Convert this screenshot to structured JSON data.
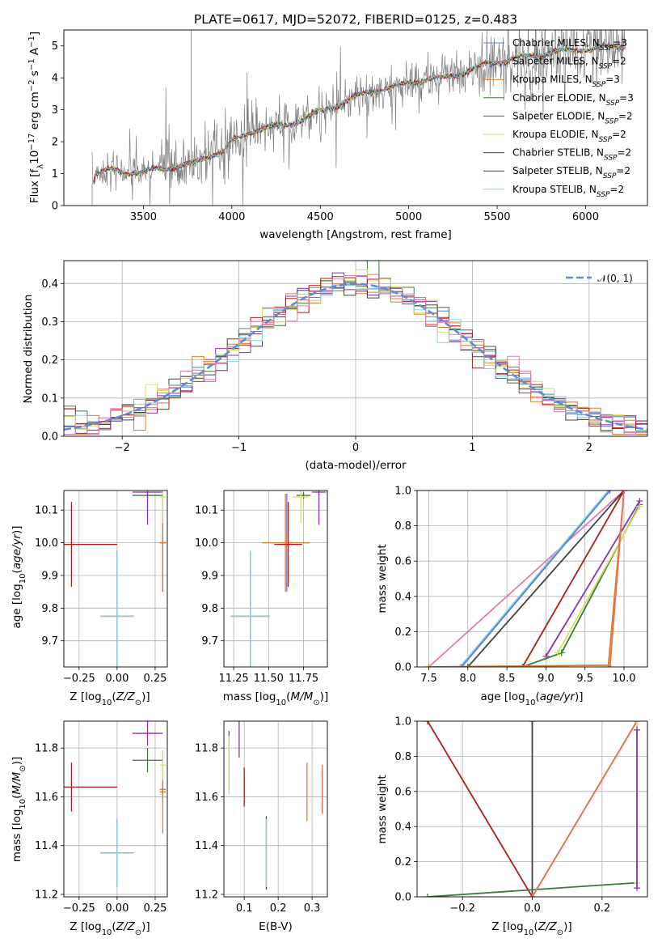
{
  "colors": {
    "Chabrier MILES": "#5b7fd6",
    "Salpeter MILES": "#e5735a",
    "Kroupa MILES": "#e07b20",
    "Chabrier ELODIE": "#3a7a3a",
    "Salpeter ELODIE": "#8b2fae",
    "Kroupa ELODIE": "#d3e25a",
    "Chabrier STELIB": "#444444",
    "Salpeter STELIB": "#b01b1b",
    "Kroupa STELIB": "#7fd6e2",
    "pink": "#e07bb0",
    "gauss": "#5b8ed6",
    "spectrum": "#808080"
  },
  "chart_data": [
    {
      "id": "spectrum",
      "type": "line",
      "title": "PLATE=0617, MJD=52072, FIBERID=0125, z=0.483",
      "xlabel": "wavelength [Angstrom, rest frame]",
      "ylabel": "Flux [f_λ 10^-17 erg cm^-2 s^-1 A^-1]",
      "xlim": [
        3050,
        6350
      ],
      "ylim": [
        0,
        5.5
      ],
      "xticks": [
        "3500",
        "4000",
        "4500",
        "5000",
        "5500",
        "6000"
      ],
      "yticks": [
        "0",
        "1",
        "2",
        "3",
        "4",
        "5"
      ],
      "grid": false,
      "legend": "top-right",
      "legend_entries": [
        {
          "model": "Chabrier MILES",
          "text": "Chabrier MILES, N",
          "sub": "SSP",
          "tail": "=3"
        },
        {
          "model": "Salpeter MILES",
          "text": "Salpeter MILES, N",
          "sub": "SSP",
          "tail": "=2"
        },
        {
          "model": "Kroupa MILES",
          "text": "Kroupa MILES, N",
          "sub": "SSP",
          "tail": "=3"
        },
        {
          "model": "Chabrier ELODIE",
          "text": "Chabrier ELODIE, N",
          "sub": "SSP",
          "tail": "=3"
        },
        {
          "model": "Salpeter ELODIE",
          "text": "Salpeter ELODIE, N",
          "sub": "SSP",
          "tail": "=2"
        },
        {
          "model": "Kroupa ELODIE",
          "text": "Kroupa ELODIE, N",
          "sub": "SSP",
          "tail": "=2"
        },
        {
          "model": "Chabrier STELIB",
          "text": "Chabrier STELIB, N",
          "sub": "SSP",
          "tail": "=2"
        },
        {
          "model": "Salpeter STELIB",
          "text": "Salpeter STELIB, N",
          "sub": "SSP",
          "tail": "=2"
        },
        {
          "model": "Kroupa STELIB",
          "text": "Kroupa STELIB, N",
          "sub": "SSP",
          "tail": "=2"
        }
      ],
      "data_continuum": [
        [
          3210,
          0.7
        ],
        [
          3230,
          1.0
        ],
        [
          3300,
          1.1
        ],
        [
          3400,
          1.05
        ],
        [
          3500,
          1.05
        ],
        [
          3600,
          1.15
        ],
        [
          3700,
          1.25
        ],
        [
          3800,
          1.35
        ],
        [
          3880,
          1.6
        ],
        [
          3950,
          1.7
        ],
        [
          4000,
          2.0
        ],
        [
          4100,
          2.3
        ],
        [
          4200,
          2.45
        ],
        [
          4300,
          2.5
        ],
        [
          4400,
          2.7
        ],
        [
          4500,
          2.95
        ],
        [
          4600,
          3.15
        ],
        [
          4700,
          3.4
        ],
        [
          4800,
          3.6
        ],
        [
          4900,
          3.7
        ],
        [
          5000,
          3.85
        ],
        [
          5100,
          3.95
        ],
        [
          5200,
          4.0
        ],
        [
          5300,
          4.15
        ],
        [
          5400,
          4.35
        ],
        [
          5500,
          4.5
        ],
        [
          5600,
          4.6
        ],
        [
          5700,
          4.7
        ],
        [
          5800,
          4.8
        ],
        [
          5900,
          4.85
        ],
        [
          6000,
          4.9
        ],
        [
          6100,
          4.95
        ],
        [
          6220,
          5.0
        ]
      ]
    },
    {
      "id": "residuals",
      "type": "histogram",
      "xlabel": "(data-model)/error",
      "ylabel": "Normed distribution",
      "xlim": [
        -2.5,
        2.5
      ],
      "ylim": [
        0,
        0.46
      ],
      "xticks": [
        "−2",
        "−1",
        "0",
        "1",
        "2"
      ],
      "yticks": [
        "0.0",
        "0.1",
        "0.2",
        "0.3",
        "0.4"
      ],
      "grid": true,
      "legend": "top-right",
      "legend_label": "𝒩(0, 1)",
      "gaussian": {
        "mean": 0,
        "sigma": 1
      }
    },
    {
      "id": "age_vs_Z",
      "type": "errorbar",
      "xlabel": "Z [log10(Z/Z⊙)]",
      "ylabel": "age [log10(age/yr)]",
      "xlim": [
        -0.35,
        0.33
      ],
      "ylim": [
        9.62,
        10.16
      ],
      "xticks": [
        "−0.25",
        "0.00",
        "0.25"
      ],
      "yticks": [
        "9.7",
        "9.8",
        "9.9",
        "10.0",
        "10.1"
      ],
      "grid": true
    },
    {
      "id": "age_vs_mass",
      "type": "errorbar",
      "xlabel": "mass [log10(M/M⊙)]",
      "ylabel": "",
      "xlim": [
        11.18,
        11.92
      ],
      "ylim": [
        9.62,
        10.16
      ],
      "xticks": [
        "11.25",
        "11.50",
        "11.75"
      ],
      "yticks": [
        "9.7",
        "9.8",
        "9.9",
        "10.0",
        "10.1"
      ],
      "grid": true
    },
    {
      "id": "mw_vs_age",
      "type": "line",
      "xlabel": "age [log10(age/yr)]",
      "ylabel": "mass weight",
      "xlim": [
        7.35,
        10.3
      ],
      "ylim": [
        0,
        1
      ],
      "xticks": [
        "7.5",
        "8.0",
        "8.5",
        "9.0",
        "9.5",
        "10.0"
      ],
      "yticks": [
        "0.0",
        "0.2",
        "0.4",
        "0.6",
        "0.8",
        "1.0"
      ],
      "grid": true
    },
    {
      "id": "mass_vs_Z",
      "type": "errorbar",
      "xlabel": "Z [log10(Z/Z⊙)]",
      "ylabel": "mass [log10(M/M⊙)]",
      "xlim": [
        -0.35,
        0.33
      ],
      "ylim": [
        11.19,
        11.91
      ],
      "xticks": [
        "−0.25",
        "0.00",
        "0.25"
      ],
      "yticks": [
        "11.2",
        "11.4",
        "11.6",
        "11.8"
      ],
      "grid": true
    },
    {
      "id": "mass_vs_ebv",
      "type": "errorbar",
      "xlabel": "E(B-V)",
      "ylabel": "",
      "xlim": [
        0.04,
        0.345
      ],
      "ylim": [
        11.19,
        11.91
      ],
      "xticks": [
        "0.1",
        "0.2",
        "0.3"
      ],
      "yticks": [
        "11.2",
        "11.4",
        "11.6",
        "11.8"
      ],
      "grid": true
    },
    {
      "id": "mw_vs_Z",
      "type": "line",
      "xlabel": "Z [log10(Z/Z⊙)]",
      "ylabel": "mass weight",
      "xlim": [
        -0.33,
        0.33
      ],
      "ylim": [
        0,
        1
      ],
      "xticks": [
        "−0.2",
        "0.0",
        "0.2"
      ],
      "yticks": [
        "0.0",
        "0.2",
        "0.4",
        "0.6",
        "0.8",
        "1.0"
      ],
      "grid": true
    }
  ],
  "fits": [
    {
      "model": "Chabrier MILES",
      "Z": 0.3,
      "Zerr": 0.02,
      "age": 10.0,
      "ageerr": 0.15,
      "mass": 11.63,
      "masserr": 0.03,
      "ebv": 0.33,
      "ebverr": 0.1
    },
    {
      "model": "Salpeter MILES",
      "Z": 0.3,
      "Zerr": 0.02,
      "age": 10.0,
      "ageerr": 0.02,
      "mass": 11.63,
      "masserr": 0.02,
      "ebv": 0.33,
      "ebverr": 0.1
    },
    {
      "model": "Kroupa MILES",
      "Z": 0.3,
      "Zerr": 0.02,
      "age": 10.0,
      "ageerr": 0.15,
      "mass": 11.62,
      "masserr": 0.17,
      "ebv": 0.285,
      "ebverr": 0.12
    },
    {
      "model": "Chabrier ELODIE",
      "Z": 0.2,
      "Zerr": 0.1,
      "age": 10.145,
      "ageerr": 0.01,
      "mass": 11.75,
      "masserr": 0.05,
      "ebv": 0.055,
      "ebverr": 0.12
    },
    {
      "model": "Salpeter ELODIE",
      "Z": 0.2,
      "Zerr": 0.1,
      "age": 10.155,
      "ageerr": 0.1,
      "mass": 11.86,
      "masserr": 0.05,
      "ebv": 0.085,
      "ebverr": 0.1
    },
    {
      "model": "Kroupa ELODIE",
      "Z": 0.3,
      "Zerr": 0.02,
      "age": 10.14,
      "ageerr": 0.08,
      "mass": 11.73,
      "masserr": 0.06,
      "ebv": 0.055,
      "ebverr": 0.12
    },
    {
      "model": "Chabrier STELIB",
      "Z": 0.0,
      "Zerr": 0.11,
      "age": 9.775,
      "ageerr": 0.2,
      "mass": 11.37,
      "masserr": 0.14,
      "ebv": 0.165,
      "ebverr": 0.15
    },
    {
      "model": "Salpeter STELIB",
      "Z": -0.3,
      "Zerr": 0.3,
      "age": 9.995,
      "ageerr": 0.13,
      "mass": 11.64,
      "masserr": 0.1,
      "ebv": 0.1,
      "ebverr": 0.08
    },
    {
      "model": "Kroupa STELIB",
      "Z": 0.0,
      "Zerr": 0.11,
      "age": 9.775,
      "ageerr": 0.2,
      "mass": 11.37,
      "masserr": 0.14,
      "ebv": 0.165,
      "ebverr": 0.14
    }
  ],
  "cumulative_age": [
    {
      "model": "pink",
      "pts": [
        [
          7.5,
          0.0
        ],
        [
          10.0,
          1.0
        ]
      ]
    },
    {
      "model": "Kroupa STELIB",
      "pts": [
        [
          7.9,
          0.0
        ],
        [
          9.8,
          1.0
        ]
      ]
    },
    {
      "model": "Chabrier MILES",
      "pts": [
        [
          7.92,
          0.0
        ],
        [
          9.82,
          1.0
        ]
      ]
    },
    {
      "model": "Chabrier STELIB",
      "pts": [
        [
          8.0,
          0.0
        ],
        [
          10.0,
          1.0
        ]
      ]
    },
    {
      "model": "Salpeter STELIB",
      "pts": [
        [
          8.7,
          0.0
        ],
        [
          10.0,
          1.0
        ]
      ]
    },
    {
      "model": "Chabrier ELODIE",
      "pts": [
        [
          8.7,
          0.0
        ],
        [
          9.2,
          0.08
        ],
        [
          10.2,
          0.92
        ]
      ]
    },
    {
      "model": "Salpeter ELODIE",
      "pts": [
        [
          9.0,
          0.06
        ],
        [
          10.2,
          0.94
        ]
      ]
    },
    {
      "model": "Kroupa ELODIE",
      "pts": [
        [
          9.15,
          0.08
        ],
        [
          10.2,
          0.91
        ]
      ]
    },
    {
      "model": "Kroupa MILES",
      "pts": [
        [
          7.5,
          0.0
        ],
        [
          9.8,
          0.01
        ],
        [
          10.0,
          1.0
        ]
      ]
    },
    {
      "model": "Salpeter MILES",
      "pts": [
        [
          9.82,
          0.0
        ],
        [
          10.0,
          1.0
        ]
      ]
    }
  ],
  "cumulative_Z": [
    {
      "model": "Salpeter STELIB",
      "pts": [
        [
          -0.3,
          1.0
        ],
        [
          0.0,
          0.0
        ]
      ]
    },
    {
      "model": "Kroupa STELIB",
      "pts": [
        [
          0.0,
          0.0
        ],
        [
          0.0,
          1.0
        ]
      ]
    },
    {
      "model": "Chabrier STELIB",
      "pts": [
        [
          0.0,
          0.0
        ],
        [
          0.0,
          1.0
        ]
      ]
    },
    {
      "model": "Chabrier ELODIE",
      "pts": [
        [
          -0.3,
          0.0
        ],
        [
          0.3,
          0.08
        ]
      ]
    },
    {
      "model": "Kroupa MILES",
      "pts": [
        [
          0.0,
          0.0
        ],
        [
          0.3,
          1.0
        ]
      ]
    },
    {
      "model": "Salpeter MILES",
      "pts": [
        [
          0.0,
          0.0
        ],
        [
          0.3,
          1.0
        ]
      ]
    },
    {
      "model": "Kroupa ELODIE",
      "pts": [
        [
          0.3,
          0.08
        ],
        [
          0.3,
          1.0
        ]
      ]
    },
    {
      "model": "Salpeter ELODIE",
      "pts": [
        [
          0.3,
          0.05
        ],
        [
          0.3,
          0.95
        ]
      ]
    }
  ]
}
